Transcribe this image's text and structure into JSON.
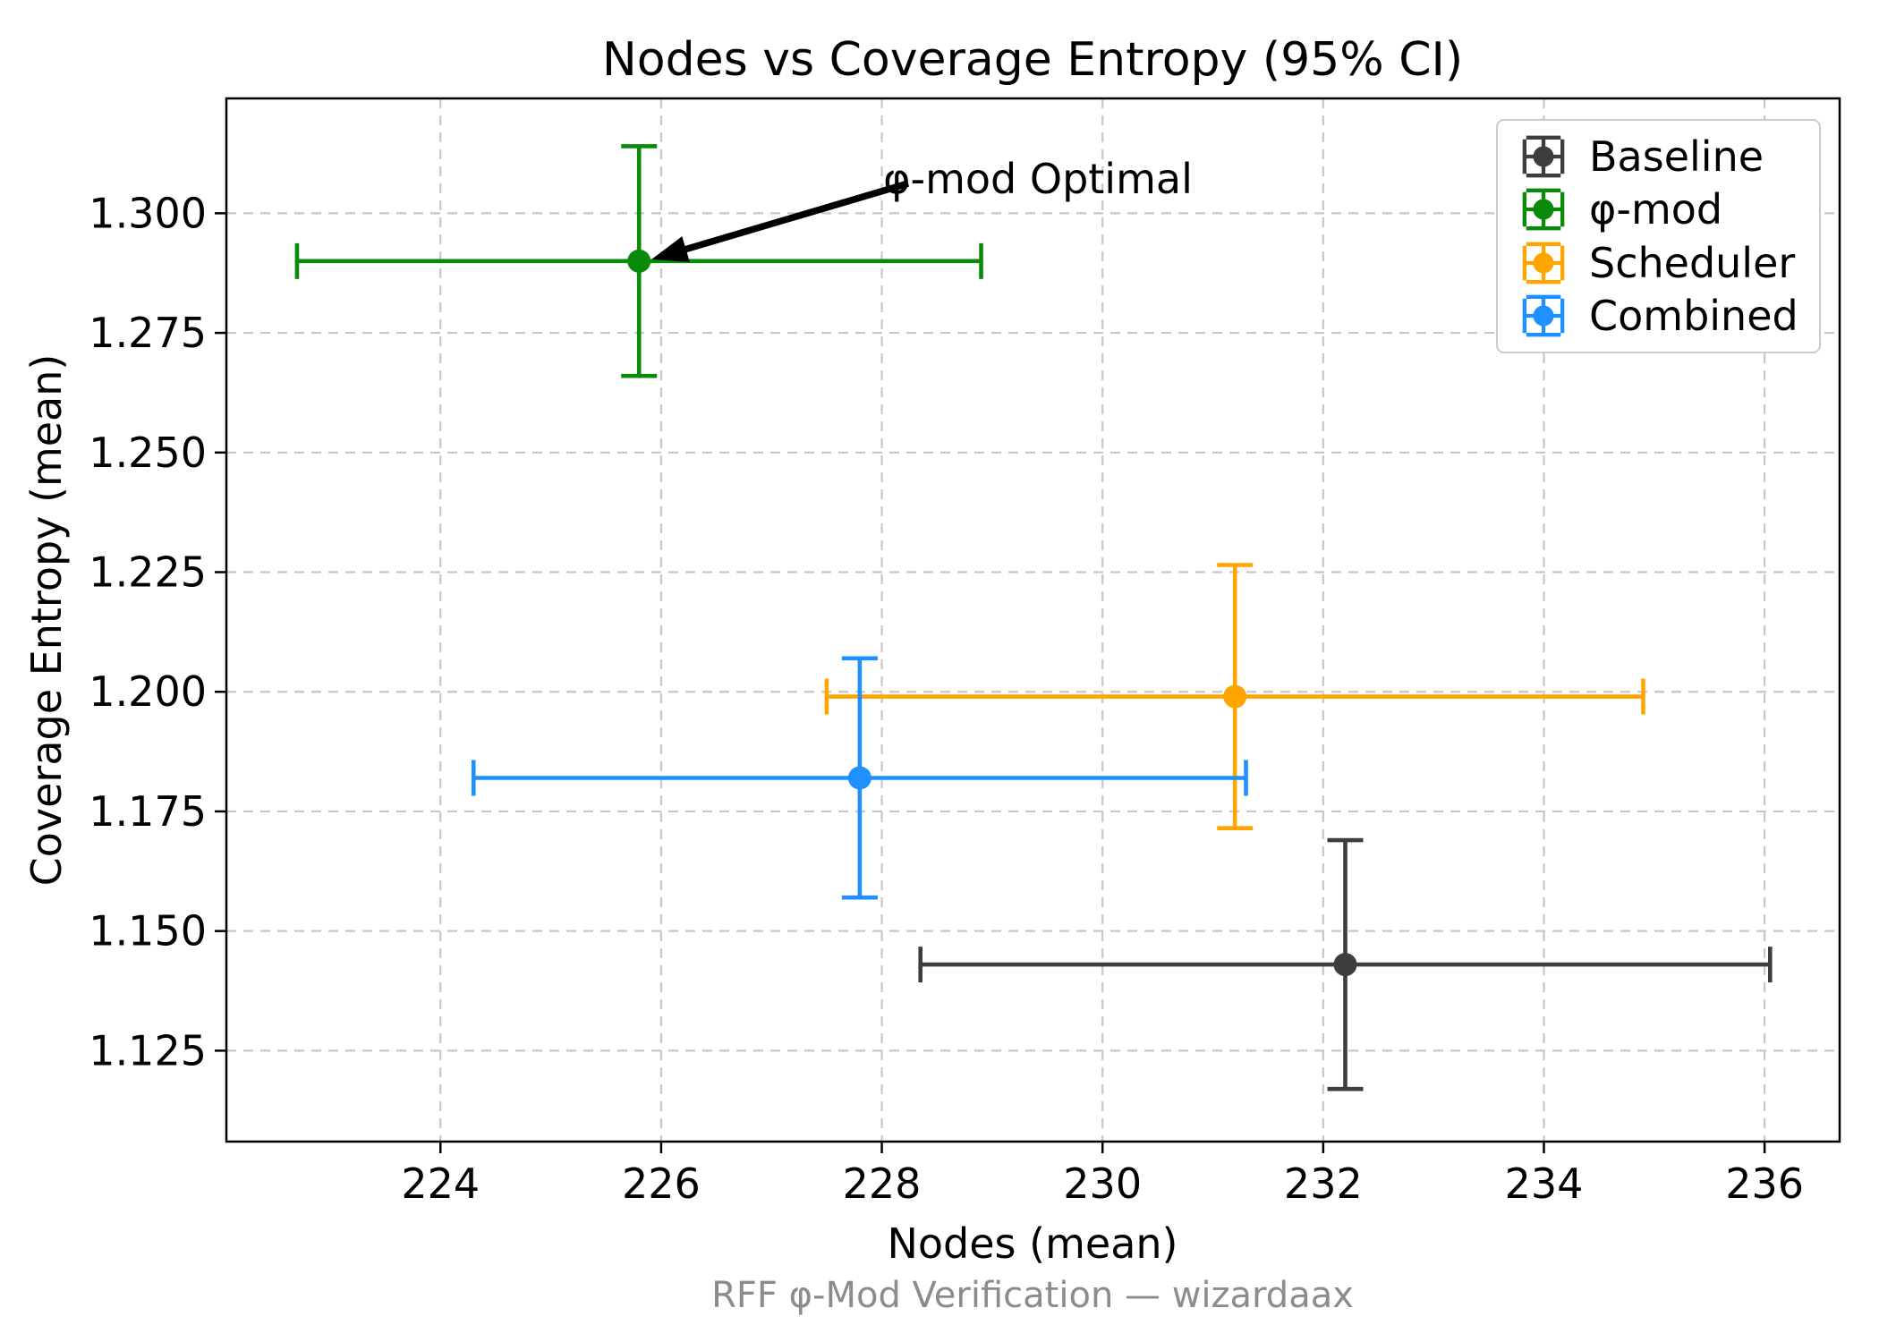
{
  "chart_data": {
    "type": "scatter",
    "title": "Nodes vs Coverage Entropy (95% CI)",
    "xlabel": "Nodes (mean)",
    "ylabel": "Coverage Entropy (mean)",
    "footer": "RFF φ-Mod Verification — wizardaax",
    "xlim": [
      222.06,
      236.68
    ],
    "ylim": [
      1.106,
      1.324
    ],
    "xticks": [
      224,
      226,
      228,
      230,
      232,
      234,
      236
    ],
    "yticks": [
      1.125,
      1.15,
      1.175,
      1.2,
      1.225,
      1.25,
      1.275,
      1.3
    ],
    "grid": true,
    "error_bars": "95% CI, symmetric x and y",
    "legend": {
      "position": "upper right",
      "entries": [
        "Baseline",
        "φ-mod",
        "Scheduler",
        "Combined"
      ]
    },
    "annotation": {
      "text": "φ-mod Optimal",
      "target": "φ-mod"
    },
    "series": [
      {
        "name": "Baseline",
        "color": "#3d3d3d",
        "x": 232.2,
        "y": 1.143,
        "xerr": 3.85,
        "yerr": 0.026,
        "x_ci": [
          228.35,
          236.05
        ],
        "y_ci": [
          1.117,
          1.169
        ]
      },
      {
        "name": "φ-mod",
        "color": "#0a8a0a",
        "x": 225.8,
        "y": 1.29,
        "xerr": 3.1,
        "yerr": 0.024,
        "x_ci": [
          222.7,
          228.9
        ],
        "y_ci": [
          1.266,
          1.314
        ]
      },
      {
        "name": "Scheduler",
        "color": "#ffa500",
        "x": 231.2,
        "y": 1.199,
        "xerr": 3.7,
        "yerr": 0.0275,
        "x_ci": [
          227.5,
          234.9
        ],
        "y_ci": [
          1.1715,
          1.2265
        ]
      },
      {
        "name": "Combined",
        "color": "#1e90ff",
        "x": 227.8,
        "y": 1.182,
        "xerr": 3.5,
        "yerr": 0.025,
        "x_ci": [
          224.3,
          231.3
        ],
        "y_ci": [
          1.157,
          1.207
        ]
      }
    ],
    "colors": {
      "grid": "#c7c7c7",
      "spine": "#000000",
      "tick_label": "#000000",
      "footer_text": "#8c8c8c",
      "legend_border": "#cccccc",
      "annotation_arrow": "#000000"
    }
  }
}
